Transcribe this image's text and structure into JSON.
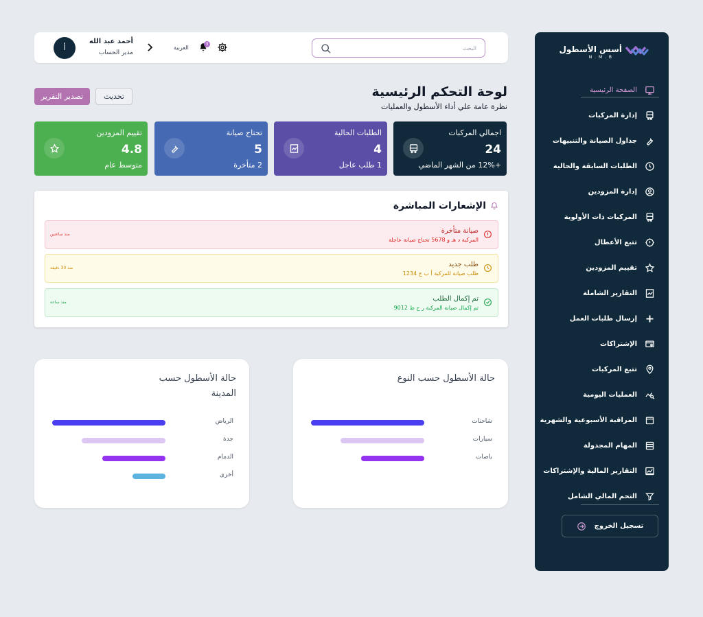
{
  "colors": {
    "sidebar_bg": "#102a3b",
    "accent": "#b273b0",
    "card_fleet": "#102a3b",
    "card_orders": "#5b4ea6",
    "card_maint": "#4569b3",
    "card_rating": "#4caf50"
  },
  "sidebar": {
    "logo_text": "أسس الأسطول",
    "logo_sub": "N . M . B",
    "items": [
      {
        "label": "الصفحة الرئيسية",
        "icon": "monitor-icon",
        "active": true
      },
      {
        "label": "إدارة المركبات",
        "icon": "bus-icon"
      },
      {
        "label": "جداول الصيانة والتنبيهات",
        "icon": "wrench-icon"
      },
      {
        "label": "الطلبات السابقة والحالية",
        "icon": "history-icon"
      },
      {
        "label": "إدارة المزودين",
        "icon": "user-circle-icon"
      },
      {
        "label": "المركبات ذات الأولوية",
        "icon": "bus-icon"
      },
      {
        "label": "تتبع الأعطال",
        "icon": "alert-gear-icon"
      },
      {
        "label": "تقييم المزودين",
        "icon": "star-icon"
      },
      {
        "label": "التقارير الشاملة",
        "icon": "chart-file-icon"
      },
      {
        "label": "إرسال طلبات العمل",
        "icon": "plus-icon"
      },
      {
        "label": "الإشتراكات",
        "icon": "card-settings-icon"
      },
      {
        "label": "تتبع المركبات",
        "icon": "map-pin-icon"
      },
      {
        "label": "العمليات اليومية",
        "icon": "chart-search-icon"
      },
      {
        "label": "المراقبة الأسبوعية والشهرية",
        "icon": "calendar-icon"
      },
      {
        "label": "المهام المجدولة",
        "icon": "list-icon"
      },
      {
        "label": "التقارير المالية والإشتراكات",
        "icon": "finance-chart-icon"
      },
      {
        "label": "التحم المالي الشامل",
        "icon": "filter-icon"
      }
    ],
    "logout_label": "تسجيل الخروج"
  },
  "header": {
    "search_placeholder": "البحث",
    "notification_count": "3",
    "language": "العربية",
    "user_name": "أحمد عبد الله",
    "user_role": "مدير الحساب",
    "avatar_initial": "أ"
  },
  "page": {
    "title": "لوحة التحكم الرئيسية",
    "subtitle": "نظرة عامة علي أداء الأسطول والعمليات",
    "refresh_label": "تحديث",
    "export_label": "تصدير التقرير"
  },
  "stats": [
    {
      "label": "اجمالي المركبات",
      "value": "24",
      "note": "+12% من الشهر الماضي",
      "icon": "bus-icon"
    },
    {
      "label": "الطلبات الحالية",
      "value": "4",
      "note": "1 طلب عاجل",
      "icon": "chart-file-icon"
    },
    {
      "label": "تحتاج صيانة",
      "value": "5",
      "note": "2 متأخرة",
      "icon": "wrench-icon"
    },
    {
      "label": "تقييم المزودين",
      "value": "4.8",
      "note": "متوسط عام",
      "icon": "star-icon"
    }
  ],
  "notifications": {
    "title": "الإشعارات المباشرة",
    "items": [
      {
        "title": "صيانة متأخرة",
        "desc": "المركبة د هـ و 5678 تحتاج صيانة عاجلة",
        "time": "منذ ساعتين",
        "kind": "error"
      },
      {
        "title": "طلب جديد",
        "desc": "طلب صيانة للمركبة أ ب ج 1234",
        "time": "منذ 30 دقيقة",
        "kind": "warning"
      },
      {
        "title": "تم إكمال الطلب",
        "desc": "تم إكمال صيانة المركبة ر ح ط 9012",
        "time": "منذ ساعة",
        "kind": "success"
      }
    ]
  },
  "fleet_by_type": {
    "title": "حالة الأسطول حسب النوع",
    "rows": [
      {
        "label": "شاحنات",
        "value": 1.0,
        "color": "#4a3ff0"
      },
      {
        "label": "سيارات",
        "value": 0.74,
        "color": "#dcc6f2"
      },
      {
        "label": "باصات",
        "value": 0.56,
        "color": "#9433f0"
      }
    ]
  },
  "fleet_by_city": {
    "title": "حالة الأسطول حسب المدينة",
    "rows": [
      {
        "label": "الرياض",
        "value": 1.0,
        "color": "#4a3ff0"
      },
      {
        "label": "جدة",
        "value": 0.74,
        "color": "#dcc6f2"
      },
      {
        "label": "الدمام",
        "value": 0.56,
        "color": "#9433f0"
      },
      {
        "label": "أخرى",
        "value": 0.29,
        "color": "#5cb3e0"
      }
    ]
  }
}
